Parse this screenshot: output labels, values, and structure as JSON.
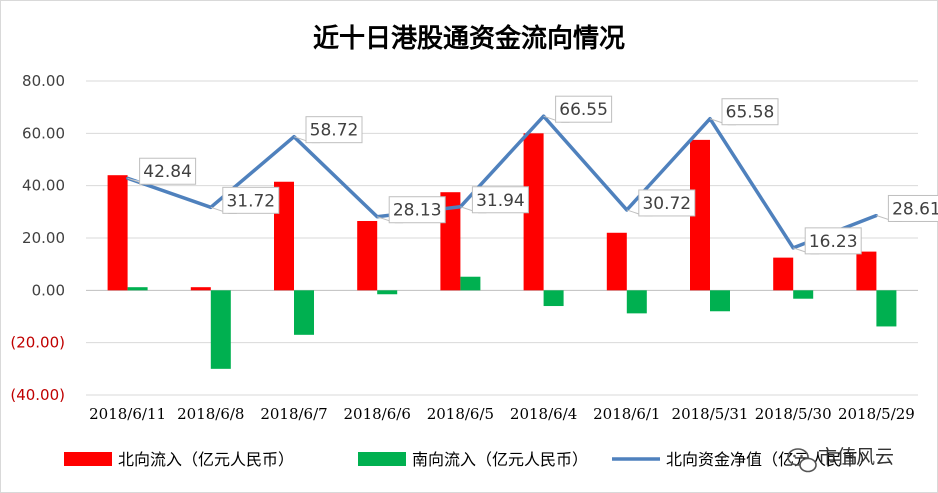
{
  "chart_data": {
    "type": "bar",
    "title": "近十日港股通资金流向情况",
    "categories": [
      "2018/6/11",
      "2018/6/8",
      "2018/6/7",
      "2018/6/6",
      "2018/6/5",
      "2018/6/4",
      "2018/6/1",
      "2018/5/31",
      "2018/5/30",
      "2018/5/29"
    ],
    "ylim": [
      -40,
      80
    ],
    "yticks": [
      {
        "value": 80,
        "label": "80.00"
      },
      {
        "value": 60,
        "label": "60.00"
      },
      {
        "value": 40,
        "label": "40.00"
      },
      {
        "value": 20,
        "label": "20.00"
      },
      {
        "value": 0,
        "label": "0.00"
      },
      {
        "value": -20,
        "label": "(20.00)"
      },
      {
        "value": -40,
        "label": "(40.00)"
      }
    ],
    "grid": true,
    "legend_position": "bottom",
    "series": [
      {
        "name": "北向流入（亿元人民币）",
        "type": "bar",
        "color": "#ff0000",
        "values": [
          44.0,
          1.2,
          41.5,
          26.5,
          37.5,
          60.0,
          22.0,
          57.5,
          12.5,
          14.8
        ]
      },
      {
        "name": "南向流入（亿元人民币）",
        "type": "bar",
        "color": "#00b050",
        "values": [
          1.2,
          -30.0,
          -17.0,
          -1.5,
          5.2,
          -6.0,
          -8.8,
          -8.0,
          -3.2,
          -13.8
        ]
      },
      {
        "name": "北向资金净值（亿元人民币）",
        "type": "line",
        "color": "#4f81bd",
        "values": [
          42.84,
          31.72,
          58.72,
          28.13,
          31.94,
          66.55,
          30.72,
          65.58,
          16.23,
          28.61
        ],
        "labels": [
          "42.84",
          "31.72",
          "58.72",
          "28.13",
          "31.94",
          "66.55",
          "30.72",
          "65.58",
          "16.23",
          "28.61"
        ]
      }
    ]
  },
  "watermark": {
    "icon": "wechat-icon",
    "text": "市值风云"
  }
}
